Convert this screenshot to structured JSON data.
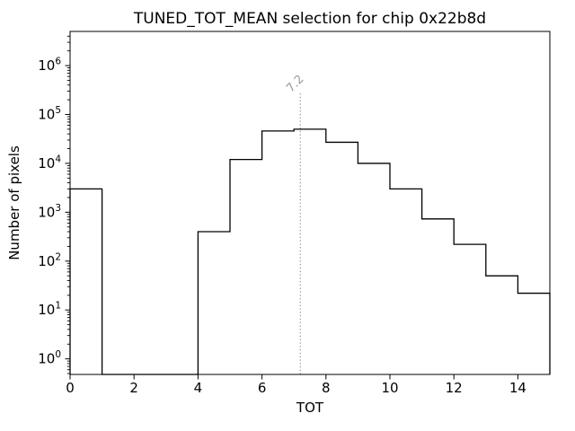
{
  "chart_data": {
    "type": "bar",
    "subtype": "step-histogram",
    "title": "TUNED_TOT_MEAN selection for chip 0x22b8d",
    "xlabel": "TOT",
    "ylabel": "Number of pixels",
    "yscale": "log",
    "grid": false,
    "legend": "none",
    "xlim": [
      0,
      15
    ],
    "ylim": [
      0.48,
      5000000
    ],
    "xticks": [
      0,
      2,
      4,
      6,
      8,
      10,
      12,
      14
    ],
    "ytick_exponents": [
      0,
      1,
      2,
      3,
      4,
      5,
      6
    ],
    "bin_edges": [
      0,
      1,
      2,
      3,
      4,
      5,
      6,
      7,
      8,
      9,
      10,
      11,
      12,
      13,
      14,
      15
    ],
    "counts": [
      3000,
      0,
      0,
      0,
      400,
      12000,
      46000,
      50000,
      27000,
      10000,
      3000,
      730,
      220,
      50,
      22
    ],
    "line_color": "#000000",
    "background_color": "#ffffff",
    "vline": {
      "x": 7.2,
      "label": "7.2",
      "color": "#999999",
      "linestyle": "dotted"
    }
  }
}
